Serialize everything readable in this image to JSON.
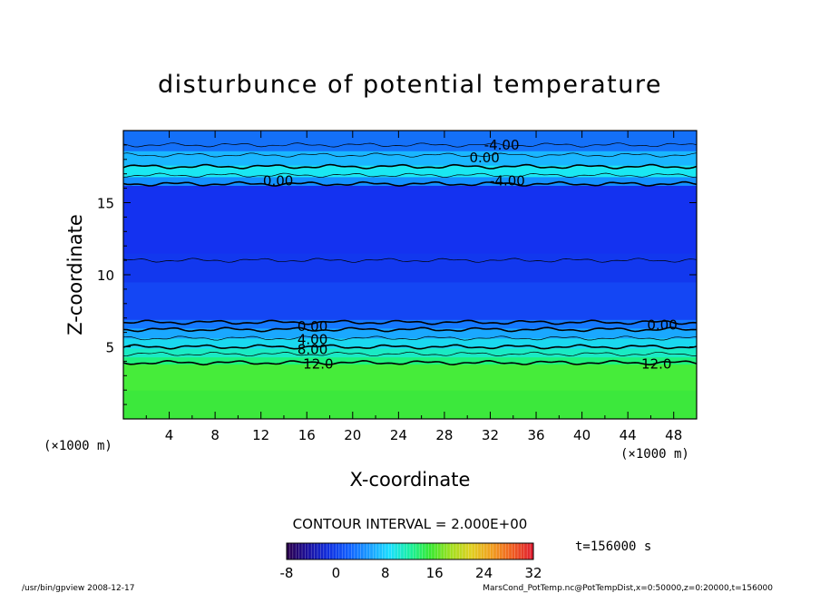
{
  "chart_data": {
    "type": "heatmap",
    "title": "disturbunce of potential temperature",
    "xlabel": "X-coordinate",
    "ylabel": "Z-coordinate",
    "x_unit_left": "(×1000 m)",
    "x_unit_right": "(×1000 m)",
    "xlim": [
      0,
      50
    ],
    "ylim": [
      0,
      20
    ],
    "x_ticks": [
      4,
      8,
      12,
      16,
      20,
      24,
      28,
      32,
      36,
      40,
      44,
      48
    ],
    "y_ticks": [
      5,
      10,
      15
    ],
    "contour_interval_text": "CONTOUR INTERVAL = 2.000E+00",
    "time_text": "t=156000 s",
    "colorbar": {
      "min": -8,
      "max": 32,
      "ticks": [
        -8,
        0,
        8,
        16,
        24,
        32
      ],
      "colors": [
        "#2a0050",
        "#1a10a0",
        "#1030e0",
        "#1060ff",
        "#1a9dff",
        "#1adfff",
        "#19f0a0",
        "#38e830",
        "#a0e020",
        "#e0d020",
        "#f0a020",
        "#f06020",
        "#e02030"
      ]
    },
    "bands": [
      {
        "z0": 0.0,
        "z1": 2.0,
        "color": "#3ce83c"
      },
      {
        "z0": 2.0,
        "z1": 3.8,
        "color": "#46ec3a"
      },
      {
        "z0": 3.8,
        "z1": 4.3,
        "color": "#1ff07e"
      },
      {
        "z0": 4.3,
        "z1": 4.9,
        "color": "#1aeac4"
      },
      {
        "z0": 4.9,
        "z1": 5.6,
        "color": "#1ad8f0"
      },
      {
        "z0": 5.6,
        "z1": 6.3,
        "color": "#1aa8ff"
      },
      {
        "z0": 6.3,
        "z1": 6.9,
        "color": "#1478ff"
      },
      {
        "z0": 6.9,
        "z1": 9.5,
        "color": "#1446f4"
      },
      {
        "z0": 9.5,
        "z1": 11.5,
        "color": "#1238ee"
      },
      {
        "z0": 11.5,
        "z1": 16.2,
        "color": "#1432f0"
      },
      {
        "z0": 16.2,
        "z1": 16.8,
        "color": "#1490ff"
      },
      {
        "z0": 16.8,
        "z1": 17.6,
        "color": "#1ae8f2"
      },
      {
        "z0": 17.6,
        "z1": 18.6,
        "color": "#1ab6ff"
      },
      {
        "z0": 18.6,
        "z1": 20.0,
        "color": "#1470f8"
      }
    ],
    "contour_lines": [
      {
        "z": 3.9,
        "bold": true
      },
      {
        "z": 4.5,
        "bold": false
      },
      {
        "z": 5.0,
        "bold": true
      },
      {
        "z": 5.6,
        "bold": false
      },
      {
        "z": 6.2,
        "bold": true
      },
      {
        "z": 6.7,
        "bold": true
      },
      {
        "z": 11.0,
        "bold": false
      },
      {
        "z": 16.3,
        "bold": true
      },
      {
        "z": 16.9,
        "bold": false
      },
      {
        "z": 17.5,
        "bold": true
      },
      {
        "z": 18.3,
        "bold": false
      },
      {
        "z": 19.0,
        "bold": false
      }
    ],
    "contour_labels": [
      {
        "x": 16.5,
        "z": 6.4,
        "text": "0.00"
      },
      {
        "x": 16.5,
        "z": 5.5,
        "text": "4.00"
      },
      {
        "x": 16.5,
        "z": 4.8,
        "text": "8.00"
      },
      {
        "x": 17.0,
        "z": 3.8,
        "text": "12.0"
      },
      {
        "x": 47.0,
        "z": 6.5,
        "text": "0.00"
      },
      {
        "x": 46.5,
        "z": 3.8,
        "text": "12.0"
      },
      {
        "x": 13.5,
        "z": 16.5,
        "text": "0.00"
      },
      {
        "x": 31.5,
        "z": 18.1,
        "text": "0.00"
      },
      {
        "x": 33.0,
        "z": 19.0,
        "text": "-4.00"
      },
      {
        "x": 33.5,
        "z": 16.5,
        "text": "-4.00"
      }
    ]
  },
  "footer": {
    "left": "/usr/bin/gpview   2008-12-17",
    "right": "MarsCond_PotTemp.nc@PotTempDist,x=0:50000,z=0:20000,t=156000"
  }
}
